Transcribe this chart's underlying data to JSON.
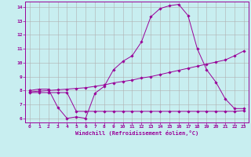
{
  "xlabel": "Windchill (Refroidissement éolien,°C)",
  "background_color": "#c8eef0",
  "line_color": "#990099",
  "grid_color": "#b0b0b0",
  "xlim": [
    -0.5,
    23.5
  ],
  "ylim": [
    5.7,
    14.4
  ],
  "xticks": [
    0,
    1,
    2,
    3,
    4,
    5,
    6,
    7,
    8,
    9,
    10,
    11,
    12,
    13,
    14,
    15,
    16,
    17,
    18,
    19,
    20,
    21,
    22,
    23
  ],
  "yticks": [
    6,
    7,
    8,
    9,
    10,
    11,
    12,
    13,
    14
  ],
  "line1_x": [
    0,
    1,
    2,
    3,
    4,
    5,
    6,
    7,
    8,
    9,
    10,
    11,
    12,
    13,
    14,
    15,
    16,
    17,
    18,
    19,
    20,
    21,
    22,
    23
  ],
  "line1_y": [
    8.0,
    8.1,
    8.1,
    6.8,
    6.0,
    6.1,
    6.0,
    7.8,
    8.3,
    9.5,
    10.1,
    10.5,
    11.5,
    13.3,
    13.9,
    14.1,
    14.2,
    13.4,
    11.0,
    9.5,
    8.6,
    7.4,
    6.7,
    6.7
  ],
  "line2_x": [
    0,
    1,
    2,
    3,
    4,
    5,
    6,
    7,
    8,
    9,
    10,
    11,
    12,
    13,
    14,
    15,
    16,
    17,
    18,
    19,
    20,
    21,
    22,
    23
  ],
  "line2_y": [
    7.9,
    7.95,
    8.0,
    8.05,
    8.1,
    8.15,
    8.2,
    8.3,
    8.4,
    8.55,
    8.65,
    8.75,
    8.9,
    9.0,
    9.15,
    9.3,
    9.45,
    9.6,
    9.75,
    9.9,
    10.05,
    10.2,
    10.5,
    10.85
  ],
  "line3_x": [
    0,
    1,
    2,
    3,
    4,
    5,
    6,
    7,
    8,
    9,
    10,
    11,
    12,
    13,
    14,
    15,
    16,
    17,
    18,
    19,
    20,
    21,
    22,
    23
  ],
  "line3_y": [
    7.85,
    7.85,
    7.85,
    7.85,
    7.85,
    6.5,
    6.5,
    6.5,
    6.5,
    6.5,
    6.5,
    6.5,
    6.5,
    6.5,
    6.5,
    6.5,
    6.5,
    6.5,
    6.5,
    6.5,
    6.5,
    6.5,
    6.5,
    6.55
  ]
}
